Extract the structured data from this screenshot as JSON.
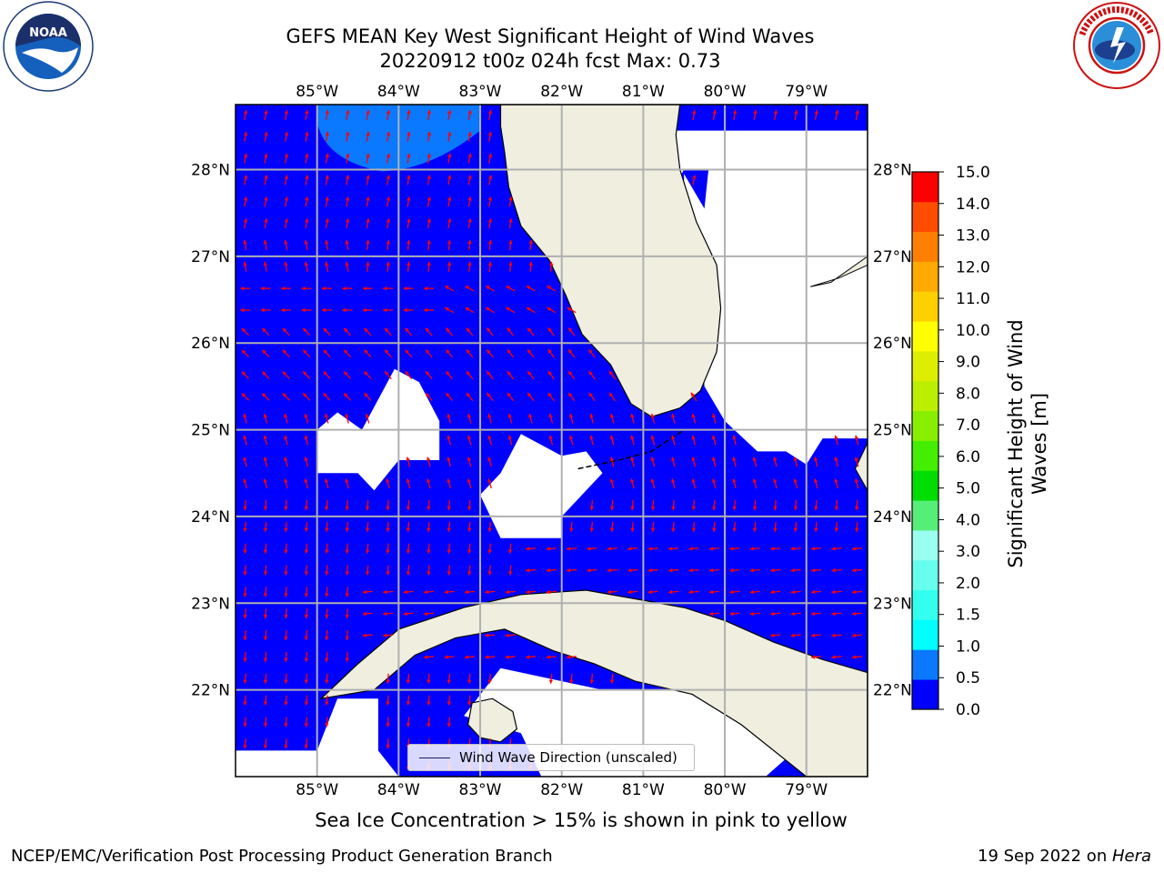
{
  "title": {
    "line1": "GEFS MEAN Key West Significant Height of Wind Waves",
    "line2": "20220912 t00z 024h fcst   Max: 0.73"
  },
  "map": {
    "lon_range": [
      -86.0,
      -78.25
    ],
    "lat_range": [
      21.0,
      28.75
    ],
    "lon_ticks": [
      "85°W",
      "84°W",
      "83°W",
      "82°W",
      "81°W",
      "80°W",
      "79°W"
    ],
    "lat_ticks": [
      "22°N",
      "23°N",
      "24°N",
      "25°N",
      "26°N",
      "27°N",
      "28°N"
    ],
    "ocean_color": "#0000ff",
    "high_wave_color": "#0a78ff",
    "land_color": "#efeedf",
    "arrow_color": "#ff0000",
    "grid_color": "#b0b0b0"
  },
  "legend": {
    "label": "Wind Wave Direction (unscaled)"
  },
  "colorbar": {
    "label": "Significant Height of Wind Waves [m]",
    "label_line1": "Significant Height of Wind",
    "label_line2": "Waves [m]",
    "ticks": [
      "0.0",
      "0.5",
      "1.0",
      "1.5",
      "2.0",
      "3.0",
      "4.0",
      "5.0",
      "6.0",
      "7.0",
      "8.0",
      "9.0",
      "10.0",
      "11.0",
      "12.0",
      "13.0",
      "14.0",
      "15.0"
    ],
    "colors": [
      "#0000ff",
      "#0a78ff",
      "#00ffff",
      "#33ffee",
      "#66ffee",
      "#99ffee",
      "#55ee77",
      "#00dd00",
      "#44ee00",
      "#88ee00",
      "#bbee00",
      "#ddee00",
      "#ffff00",
      "#ffd000",
      "#ffaa00",
      "#ff7f00",
      "#ff4d00",
      "#ff0000"
    ]
  },
  "sea_ice_note": "Sea Ice Concentration > 15% is shown in pink to yellow",
  "footer": {
    "left": "NCEP/EMC/Verification Post Processing Product Generation Branch",
    "right_date": "19 Sep 2022 on ",
    "right_host": "Hera"
  },
  "logos": {
    "left": "noaa-logo",
    "right": "nws-logo"
  }
}
